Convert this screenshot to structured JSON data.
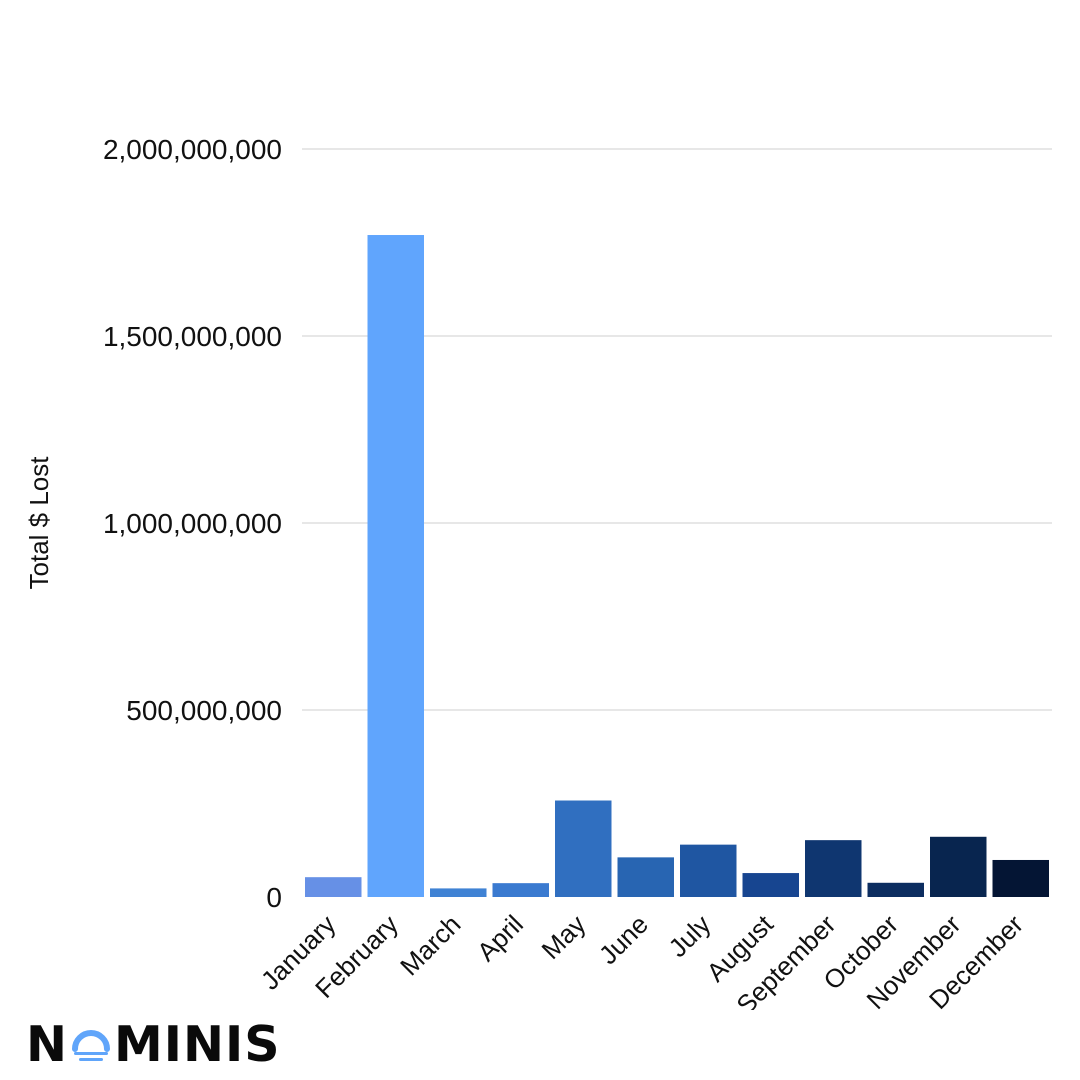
{
  "brand": {
    "name_before": "N",
    "name_after": "MINIS",
    "colors": {
      "text": "#0a0a0a",
      "accent": "#60a5fa"
    },
    "mark_icon": "wave-o-icon"
  },
  "chart_data": {
    "type": "bar",
    "title": "",
    "xlabel": "",
    "ylabel": "Total $ Lost",
    "ylim": [
      0,
      2000000000
    ],
    "yticks": [
      0,
      500000000,
      1000000000,
      1500000000,
      2000000000
    ],
    "ytick_labels": [
      "0",
      "500,000,000",
      "1,000,000,000",
      "1,500,000,000",
      "2,000,000,000"
    ],
    "grid": true,
    "legend": "none",
    "categories": [
      "January",
      "February",
      "March",
      "April",
      "May",
      "June",
      "July",
      "August",
      "September",
      "October",
      "November",
      "December"
    ],
    "values": [
      53000000,
      1770000000,
      23000000,
      37000000,
      258000000,
      106000000,
      140000000,
      64000000,
      152000000,
      38000000,
      161000000,
      99000000
    ],
    "colors": [
      "#6690e6",
      "#60a5fd",
      "#3f82d4",
      "#3a7ad0",
      "#306fc0",
      "#2865b2",
      "#1f56a2",
      "#174590",
      "#0f3670",
      "#0c2d60",
      "#08254f",
      "#041534"
    ]
  }
}
